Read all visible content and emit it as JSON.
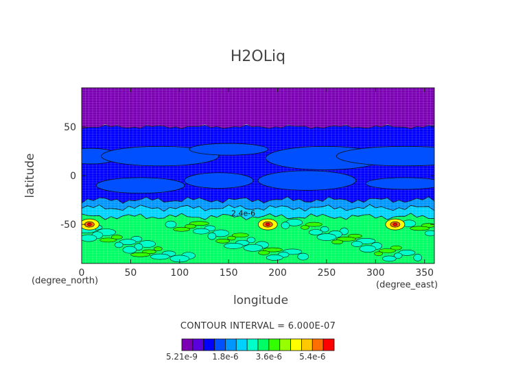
{
  "chart_data": {
    "type": "heatmap",
    "title": "H2OLiq",
    "xlabel": "longitude",
    "ylabel": "latitude",
    "x_units": "(degree_east)",
    "y_units": "(degree_north)",
    "xlim": [
      0,
      360
    ],
    "ylim": [
      -90,
      90
    ],
    "xticks": [
      0,
      50,
      100,
      150,
      200,
      250,
      300,
      350
    ],
    "yticks": [
      -50,
      0,
      50
    ],
    "grid": true,
    "contour_interval_text": "CONTOUR INTERVAL = 6.000E-07",
    "contour_labels": [
      "2.4e-6"
    ],
    "colorbar": {
      "colors": [
        "#7b00b4",
        "#5a00dc",
        "#0000ff",
        "#0050ff",
        "#0096ff",
        "#00d2ff",
        "#00ffc8",
        "#00ff64",
        "#32ff00",
        "#96ff00",
        "#ffff00",
        "#ffc800",
        "#ff6e00",
        "#ff0000"
      ],
      "tick_labels": [
        "5.21e-9",
        "1.8e-6",
        "3.6e-6",
        "5.4e-6"
      ]
    },
    "bands": [
      {
        "lat_from": 90,
        "lat_to": 50,
        "level": 0
      },
      {
        "lat_from": 50,
        "lat_to": -25,
        "level": 2
      },
      {
        "lat_from": -25,
        "lat_to": -33,
        "level": 4
      },
      {
        "lat_from": -33,
        "lat_to": -42,
        "level": 5
      },
      {
        "lat_from": -42,
        "lat_to": -90,
        "level": 7
      }
    ],
    "highlights": [
      {
        "lon": 190,
        "lat": -50,
        "value": "5.4e-6"
      },
      {
        "lon": 320,
        "lat": -50,
        "value": "4.8e-6"
      },
      {
        "lon": 8,
        "lat": -50,
        "value": "4.2e-6"
      }
    ]
  }
}
